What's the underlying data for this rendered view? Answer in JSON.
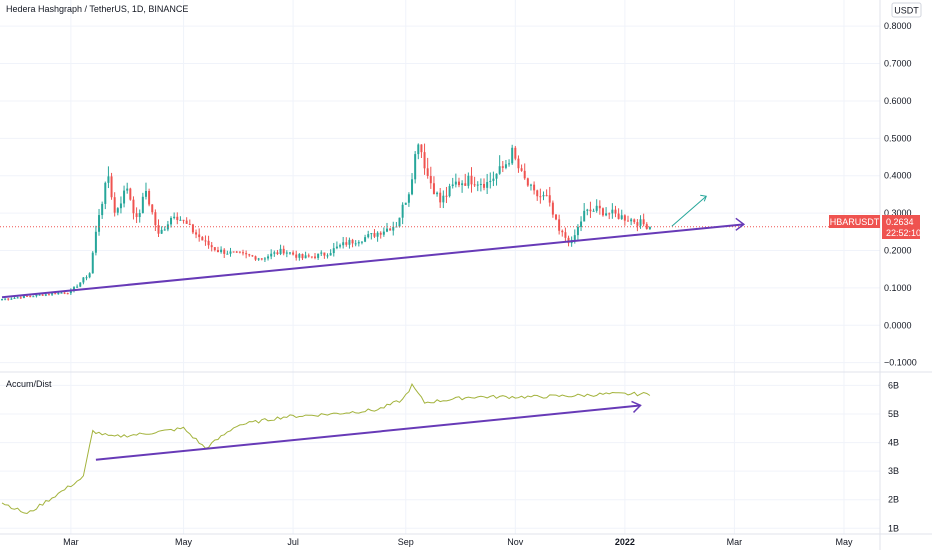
{
  "chart_data": [
    {
      "type": "candlestick",
      "title": "Hedera Hashgraph / TetherUS, 1D, BINANCE",
      "currency_badge": "USDT",
      "symbol": "HBARUSDT",
      "last_price": "0.2634",
      "countdown": "22:52:10",
      "y_ticks": [
        "0.8000",
        "0.7000",
        "0.6000",
        "0.5000",
        "0.4000",
        "0.3000",
        "0.2000",
        "0.1000",
        "0.0000",
        "−0.1000"
      ],
      "y_tick_values": [
        0.8,
        0.7,
        0.6,
        0.5,
        0.4,
        0.3,
        0.2,
        0.1,
        0.0,
        -0.1
      ],
      "ylim": [
        -0.125,
        0.87
      ],
      "x_ticks": [
        "Mar",
        "May",
        "Jul",
        "Sep",
        "Nov",
        "2022",
        "Mar",
        "May"
      ],
      "anchors": [
        [
          0,
          0.07
        ],
        [
          22,
          0.09
        ],
        [
          28,
          0.14
        ],
        [
          31,
          0.3
        ],
        [
          34,
          0.4
        ],
        [
          36,
          0.3
        ],
        [
          40,
          0.37
        ],
        [
          43,
          0.28
        ],
        [
          46,
          0.36
        ],
        [
          50,
          0.24
        ],
        [
          55,
          0.3
        ],
        [
          60,
          0.26
        ],
        [
          65,
          0.22
        ],
        [
          69,
          0.2
        ],
        [
          75,
          0.19
        ],
        [
          83,
          0.18
        ],
        [
          90,
          0.2
        ],
        [
          96,
          0.18
        ],
        [
          103,
          0.19
        ],
        [
          110,
          0.22
        ],
        [
          118,
          0.24
        ],
        [
          126,
          0.27
        ],
        [
          130,
          0.36
        ],
        [
          133,
          0.5
        ],
        [
          136,
          0.4
        ],
        [
          140,
          0.33
        ],
        [
          145,
          0.38
        ],
        [
          150,
          0.39
        ],
        [
          155,
          0.38
        ],
        [
          160,
          0.42
        ],
        [
          163,
          0.46
        ],
        [
          166,
          0.4
        ],
        [
          170,
          0.35
        ],
        [
          174,
          0.34
        ],
        [
          178,
          0.25
        ],
        [
          182,
          0.22
        ],
        [
          186,
          0.3
        ],
        [
          190,
          0.31
        ],
        [
          194,
          0.3
        ],
        [
          198,
          0.29
        ],
        [
          202,
          0.28
        ],
        [
          205,
          0.27
        ],
        [
          207,
          0.265
        ]
      ],
      "trendline_start": 0.075,
      "trendline_end": 0.27,
      "line_color": "#26a69a",
      "down_color": "#ef5350",
      "trend_color": "#673ab7",
      "projection_color": "#26a69a"
    },
    {
      "type": "line",
      "title": "Accum/Dist",
      "y_ticks": [
        "6B",
        "5B",
        "4B",
        "3B",
        "2B",
        "1B"
      ],
      "y_tick_values": [
        6,
        5,
        4,
        3,
        2,
        1
      ],
      "ylim": [
        0.8,
        6.4
      ],
      "anchors": [
        [
          0,
          1.9
        ],
        [
          8,
          1.5
        ],
        [
          15,
          2.0
        ],
        [
          22,
          2.5
        ],
        [
          26,
          2.8
        ],
        [
          29,
          4.4
        ],
        [
          35,
          4.2
        ],
        [
          45,
          4.3
        ],
        [
          58,
          4.5
        ],
        [
          65,
          3.8
        ],
        [
          75,
          4.6
        ],
        [
          90,
          4.9
        ],
        [
          105,
          5.0
        ],
        [
          120,
          5.15
        ],
        [
          128,
          5.5
        ],
        [
          131,
          6.0
        ],
        [
          135,
          5.4
        ],
        [
          150,
          5.6
        ],
        [
          170,
          5.6
        ],
        [
          185,
          5.65
        ],
        [
          193,
          5.7
        ],
        [
          207,
          5.7
        ]
      ],
      "arrow_start": 3.4,
      "arrow_end": 5.3,
      "line_color": "#a3b33c",
      "arrow_color": "#673ab7"
    }
  ]
}
